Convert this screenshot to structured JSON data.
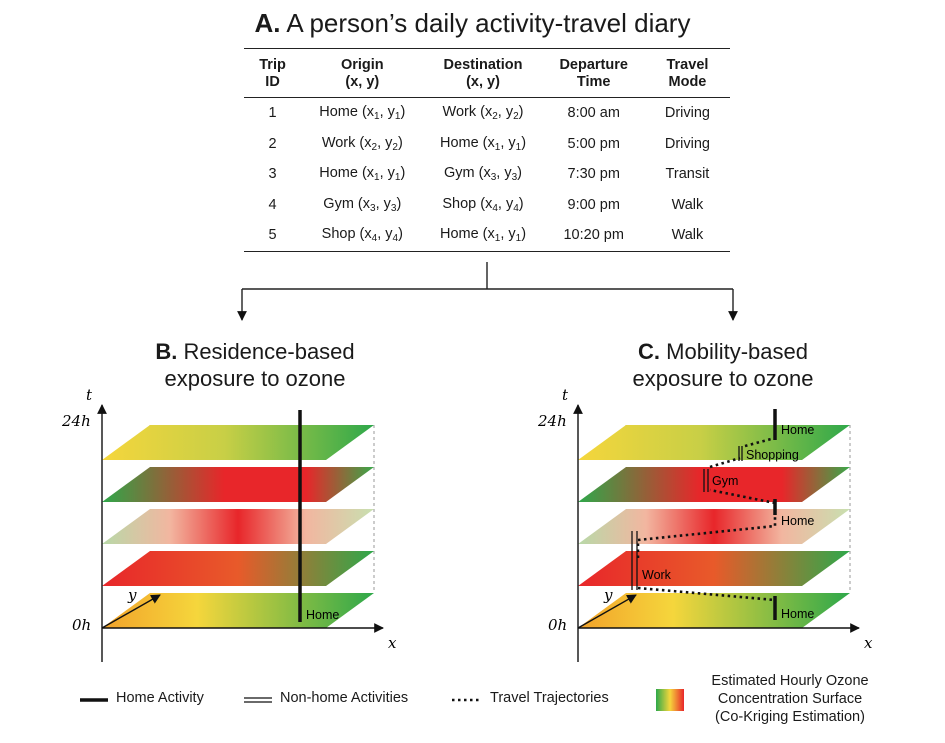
{
  "panel_a": {
    "letter": "A.",
    "title": "A person’s daily activity-travel diary",
    "headers": [
      [
        "Trip",
        "ID"
      ],
      [
        "Origin",
        "(x, y)"
      ],
      [
        "Destination",
        "(x, y)"
      ],
      [
        "Departure",
        "Time"
      ],
      [
        "Travel",
        "Mode"
      ]
    ],
    "rows": [
      {
        "id": "1",
        "origin": "Home",
        "o_sub": "1",
        "destination": "Work",
        "d_sub": "2",
        "time": "8:00 am",
        "mode": "Driving"
      },
      {
        "id": "2",
        "origin": "Work",
        "o_sub": "2",
        "destination": "Home",
        "d_sub": "1",
        "time": "5:00 pm",
        "mode": "Driving"
      },
      {
        "id": "3",
        "origin": "Home",
        "o_sub": "1",
        "destination": "Gym",
        "d_sub": "3",
        "time": "7:30 pm",
        "mode": "Transit"
      },
      {
        "id": "4",
        "origin": "Gym",
        "o_sub": "3",
        "destination": "Shop",
        "d_sub": "4",
        "time": "9:00 pm",
        "mode": "Walk"
      },
      {
        "id": "5",
        "origin": "Shop",
        "o_sub": "4",
        "destination": "Home",
        "d_sub": "1",
        "time": "10:20 pm",
        "mode": "Walk"
      }
    ]
  },
  "panel_b": {
    "letter": "B.",
    "title_line1": "Residence-based",
    "title_line2": "exposure to ozone",
    "axis_t": "t",
    "axis_x": "x",
    "axis_y": "y",
    "tick_top": "24h",
    "tick_bottom": "0h",
    "home_label": "Home"
  },
  "panel_c": {
    "letter": "C.",
    "title_line1": "Mobility-based",
    "title_line2": "exposure to ozone",
    "axis_t": "t",
    "axis_x": "x",
    "axis_y": "y",
    "tick_top": "24h",
    "tick_bottom": "0h",
    "labels": {
      "home_top": "Home",
      "shopping": "Shopping",
      "gym": "Gym",
      "home_mid": "Home",
      "work": "Work",
      "home_bottom": "Home"
    }
  },
  "legend": {
    "home_activity": "Home Activity",
    "non_home": "Non-home Activities",
    "travel": "Travel Trajectories",
    "surface_line1": "Estimated Hourly Ozone",
    "surface_line2": "Concentration Surface",
    "surface_line3": "(Co-Kriging Estimation)"
  },
  "colors": {
    "green": "#2ea84a",
    "yellow": "#f5d63c",
    "orange": "#f08a2a",
    "red": "#e8262a",
    "pale_green": "#b8d9a8"
  }
}
